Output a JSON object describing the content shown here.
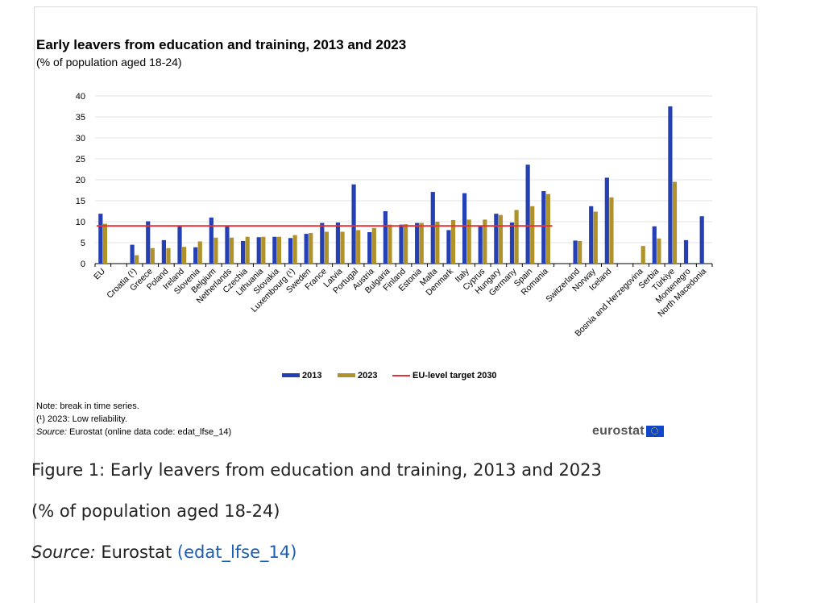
{
  "colors": {
    "series_2013": "#2540b4",
    "series_2023": "#b0922a",
    "target_line": "#e0343a",
    "grid": "#e3e3e3"
  },
  "chart_data": {
    "type": "bar",
    "title": "Early leavers from education and training, 2013 and 2023",
    "subtitle": "(% of population aged 18-24)",
    "ylim": [
      0,
      40
    ],
    "yticks": [
      0,
      5,
      10,
      15,
      20,
      25,
      30,
      35,
      40
    ],
    "grid": true,
    "legend_position": "bottom",
    "categories": [
      "EU",
      "",
      "Croatia (¹)",
      "Greece",
      "Poland",
      "Ireland",
      "Slovenia",
      "Belgium",
      "Netherlands",
      "Czechia",
      "Lithuania",
      "Slovakia",
      "Luxembourg (¹)",
      "Sweden",
      "France",
      "Latvia",
      "Portugal",
      "Austria",
      "Bulgaria",
      "Finland",
      "Estonia",
      "Malta",
      "Denmark",
      "Italy",
      "Cyprus",
      "Hungary",
      "Germany",
      "Spain",
      "Romania",
      "",
      "Switzerland",
      "Norway",
      "Iceland",
      "",
      "Bosnia and Herzegovina",
      "Serbia",
      "Türkiye",
      "Montenegro",
      "North Macedonia"
    ],
    "series": [
      {
        "name": "2013",
        "values": [
          11.9,
          null,
          4.5,
          10.1,
          5.6,
          8.9,
          3.9,
          11.0,
          9.0,
          5.4,
          6.3,
          6.4,
          6.1,
          7.1,
          9.7,
          9.8,
          18.9,
          7.5,
          12.5,
          9.3,
          9.7,
          17.1,
          8.0,
          16.8,
          9.1,
          11.9,
          9.8,
          23.6,
          17.3,
          null,
          5.5,
          13.7,
          20.5,
          null,
          null,
          8.9,
          37.5,
          5.6,
          11.3
        ]
      },
      {
        "name": "2023",
        "values": [
          9.5,
          null,
          2.0,
          3.7,
          3.7,
          4.0,
          5.3,
          6.2,
          6.2,
          6.4,
          6.4,
          6.4,
          6.8,
          7.3,
          7.6,
          7.6,
          8.0,
          8.5,
          9.3,
          9.4,
          9.7,
          10.0,
          10.4,
          10.5,
          10.5,
          11.6,
          12.8,
          13.7,
          16.6,
          null,
          5.4,
          12.4,
          15.8,
          null,
          4.2,
          6.0,
          19.5,
          null,
          null
        ]
      }
    ],
    "reference_line": {
      "name": "EU-level target 2030",
      "value": 9,
      "from_category": "EU",
      "to_category": "Romania"
    },
    "legend": [
      "2013",
      "2023",
      "EU-level target 2030"
    ]
  },
  "notes": {
    "line1": "Note: break in time series.",
    "line2": "(¹) 2023: Low reliability.",
    "source_label": "Source:",
    "source_text": " Eurostat (online data code: edat_lfse_14)"
  },
  "logo": {
    "text": "eurostat"
  },
  "caption": {
    "title": "Figure 1: Early leavers from education and training, 2013 and 2023",
    "subtitle": "(% of population aged 18-24)",
    "source_label": "Source:",
    "source_text": " Eurostat ",
    "source_link": "(edat_lfse_14)"
  }
}
